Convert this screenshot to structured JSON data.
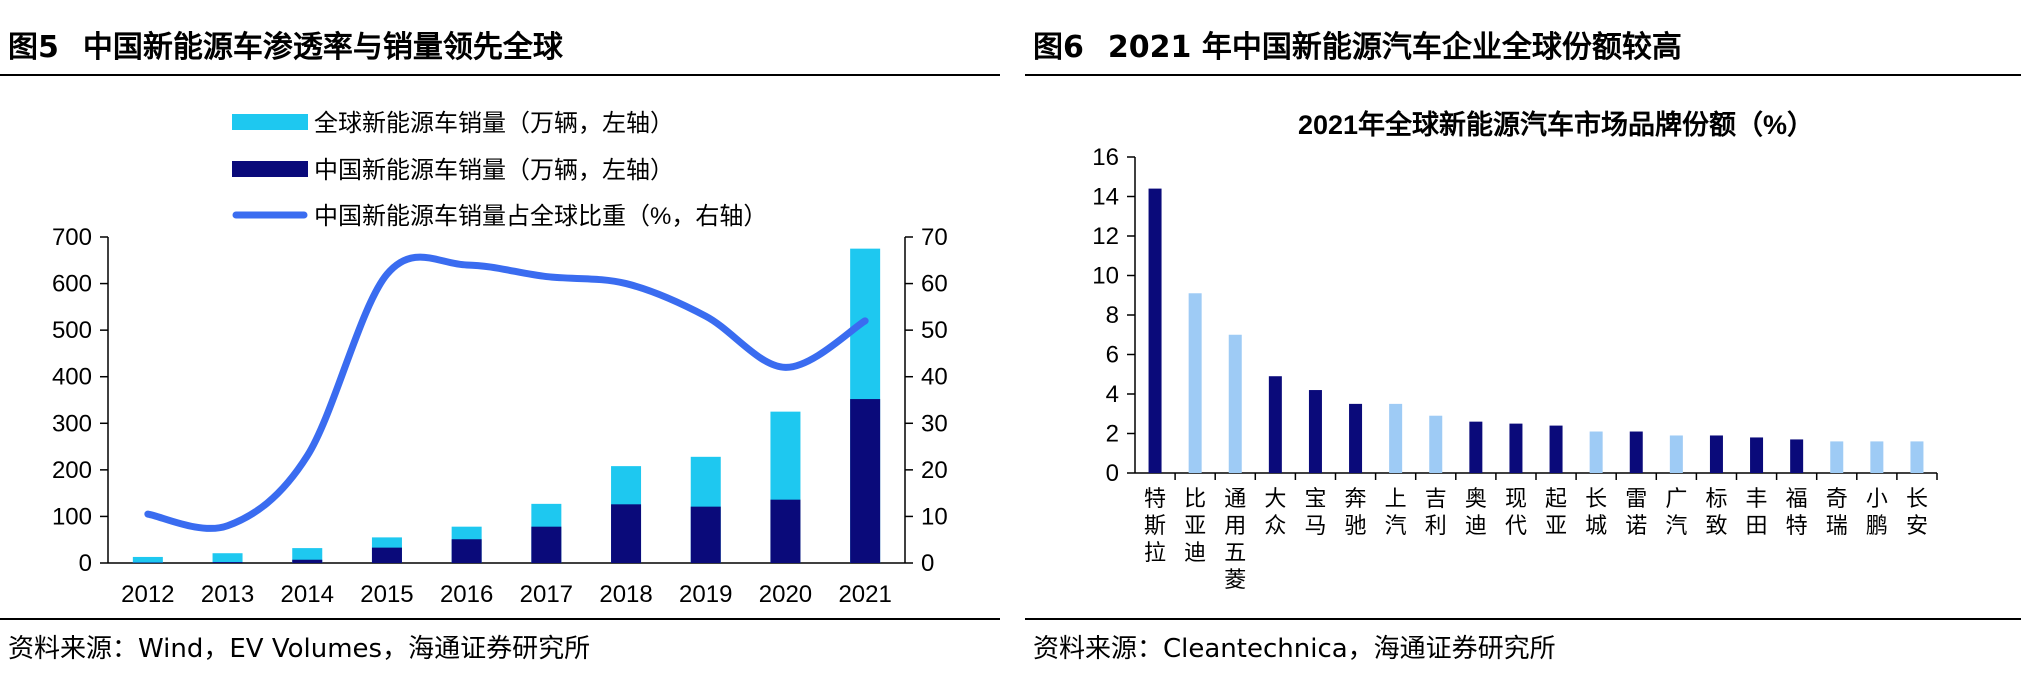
{
  "left": {
    "figure_number": "图5",
    "figure_title": "中国新能源车渗透率与销量领先全球",
    "source": "资料来源：Wind，EV Volumes，海通证券研究所",
    "chart_data": {
      "type": "bar",
      "categories": [
        "2012",
        "2013",
        "2014",
        "2015",
        "2016",
        "2017",
        "2018",
        "2019",
        "2020",
        "2021"
      ],
      "series": [
        {
          "name": "全球新能源车销量（万辆，左轴）",
          "type": "bar",
          "axis": "left",
          "color": "#1ec8f0",
          "values": [
            13,
            21,
            32,
            55,
            78,
            127,
            208,
            228,
            325,
            675
          ]
        },
        {
          "name": "中国新能源车销量（万辆，左轴）",
          "type": "bar",
          "axis": "left",
          "color": "#0a0a7a",
          "values": [
            1,
            2,
            7,
            33,
            51,
            78,
            126,
            121,
            136,
            352
          ]
        },
        {
          "name": "中国新能源车销量占全球比重（%，右轴）",
          "type": "line",
          "axis": "right",
          "color": "#3a6cf0",
          "values": [
            10.5,
            8,
            23,
            62,
            64,
            61.5,
            60,
            53,
            42,
            52
          ]
        }
      ],
      "y_left": {
        "min": 0,
        "max": 700,
        "ticks": [
          0,
          100,
          200,
          300,
          400,
          500,
          600,
          700
        ]
      },
      "y_right": {
        "min": 0,
        "max": 70,
        "ticks": [
          0,
          10,
          20,
          30,
          40,
          50,
          60,
          70
        ]
      },
      "legend_position": "top-left"
    }
  },
  "right": {
    "figure_number": "图6",
    "figure_title": "2021 年中国新能源汽车企业全球份额较高",
    "source": "资料来源：Cleantechnica，海通证券研究所",
    "chart_data": {
      "type": "bar",
      "title": "2021年全球新能源汽车市场品牌份额（%）",
      "categories": [
        "特斯拉",
        "比亚迪",
        "通用五菱",
        "大众",
        "宝马",
        "奔驰",
        "上汽",
        "吉利",
        "奥迪",
        "现代",
        "起亚",
        "长城",
        "雷诺",
        "广汽",
        "标致",
        "丰田",
        "福特",
        "奇瑞",
        "小鹏",
        "长安"
      ],
      "values": [
        14.4,
        9.1,
        7.0,
        4.9,
        4.2,
        3.5,
        3.5,
        2.9,
        2.6,
        2.5,
        2.4,
        2.1,
        2.1,
        1.9,
        1.9,
        1.8,
        1.7,
        1.6,
        1.6,
        1.6
      ],
      "colors": [
        "#0a0a7a",
        "#9ecbf5",
        "#9ecbf5",
        "#0a0a7a",
        "#0a0a7a",
        "#0a0a7a",
        "#9ecbf5",
        "#9ecbf5",
        "#0a0a7a",
        "#0a0a7a",
        "#0a0a7a",
        "#9ecbf5",
        "#0a0a7a",
        "#9ecbf5",
        "#0a0a7a",
        "#0a0a7a",
        "#0a0a7a",
        "#9ecbf5",
        "#9ecbf5",
        "#9ecbf5"
      ],
      "ylim": [
        0,
        16
      ],
      "ticks": [
        0,
        2,
        4,
        6,
        8,
        10,
        12,
        14,
        16
      ]
    }
  }
}
